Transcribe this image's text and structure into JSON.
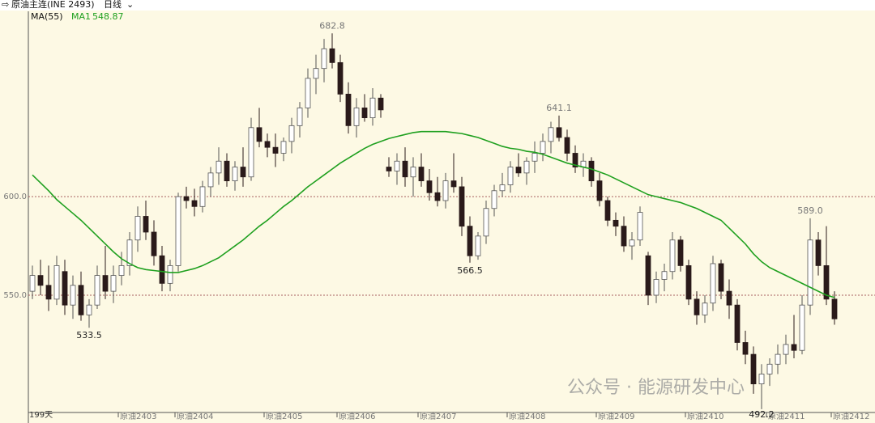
{
  "chart_data": {
    "type": "candlestick",
    "title": "原油主连(INE 2493)",
    "period": "日线",
    "days": "199天",
    "indicator": "MA(55)",
    "watermark": "公众号 · 能源研发中心",
    "up_color": "#ffffff",
    "down_color": "#2a1a1a",
    "grid": true,
    "ylim": [
      490.5,
      694
    ],
    "yticks": [
      {
        "value": 550,
        "label": "550.0"
      },
      {
        "value": 600,
        "label": "600.0"
      }
    ],
    "annotations": [
      "682.8",
      "641.1",
      "589.0",
      "533.5",
      "566.5",
      "492.2"
    ],
    "categories": [
      null,
      null,
      null,
      null,
      null,
      null,
      null,
      null,
      null,
      null,
      null,
      "原油2403",
      null,
      null,
      null,
      null,
      null,
      null,
      "原油2404",
      null,
      null,
      null,
      null,
      null,
      null,
      null,
      null,
      null,
      null,
      "原油2405",
      null,
      null,
      null,
      null,
      null,
      null,
      null,
      null,
      "原油2406",
      null,
      null,
      null,
      null,
      null,
      null,
      null,
      null,
      null,
      "原油2407",
      null,
      null,
      null,
      null,
      null,
      null,
      null,
      null,
      null,
      null,
      "原油2408",
      null,
      null,
      null,
      null,
      null,
      null,
      null,
      null,
      null,
      null,
      "原油2409",
      null,
      null,
      null,
      null,
      null,
      null,
      null,
      null,
      null,
      null,
      "原油2410",
      null,
      null,
      null,
      null,
      null,
      null,
      null,
      null,
      null,
      "原油2411",
      null,
      null,
      null,
      null,
      null,
      null,
      null,
      "原油2412"
    ],
    "ohlc": [
      [
        552,
        565,
        548,
        560
      ],
      [
        560,
        568,
        550,
        555
      ],
      [
        555,
        565,
        542,
        548
      ],
      [
        548,
        570,
        545,
        565
      ],
      [
        562,
        568,
        540,
        545
      ],
      [
        545,
        560,
        538,
        555
      ],
      [
        555,
        562,
        537,
        540
      ],
      [
        540,
        548,
        533.5,
        545
      ],
      [
        545,
        565,
        543,
        560
      ],
      [
        560,
        575,
        548,
        552
      ],
      [
        552,
        565,
        546,
        560
      ],
      [
        560,
        572,
        555,
        565
      ],
      [
        565,
        582,
        560,
        578
      ],
      [
        578,
        595,
        572,
        590
      ],
      [
        590,
        598,
        578,
        582
      ],
      [
        582,
        588,
        565,
        570
      ],
      [
        570,
        575,
        552,
        556
      ],
      [
        556,
        568,
        552,
        565
      ],
      [
        565,
        602,
        562,
        600
      ],
      [
        600,
        605,
        594,
        598
      ],
      [
        598,
        604,
        590,
        595
      ],
      [
        595,
        608,
        592,
        605
      ],
      [
        605,
        615,
        600,
        612
      ],
      [
        612,
        625,
        606,
        618
      ],
      [
        618,
        622,
        605,
        608
      ],
      [
        608,
        618,
        603,
        615
      ],
      [
        615,
        625,
        605,
        610
      ],
      [
        610,
        640,
        608,
        635
      ],
      [
        635,
        645,
        625,
        628
      ],
      [
        628,
        632,
        620,
        625
      ],
      [
        625,
        632,
        615,
        622
      ],
      [
        622,
        630,
        618,
        628
      ],
      [
        628,
        640,
        622,
        636
      ],
      [
        636,
        648,
        630,
        645
      ],
      [
        645,
        665,
        640,
        660
      ],
      [
        660,
        672,
        652,
        665
      ],
      [
        665,
        680,
        658,
        675
      ],
      [
        675,
        682.8,
        665,
        668
      ],
      [
        668,
        672,
        648,
        652
      ],
      [
        652,
        658,
        632,
        636
      ],
      [
        636,
        650,
        630,
        645
      ],
      [
        645,
        652,
        638,
        640
      ],
      [
        640,
        655,
        636,
        650
      ],
      [
        650,
        652,
        640,
        644
      ],
      [
        615,
        620,
        610,
        613
      ],
      [
        613,
        622,
        606,
        618
      ],
      [
        618,
        625,
        605,
        610
      ],
      [
        610,
        620,
        600,
        615
      ],
      [
        615,
        622,
        605,
        608
      ],
      [
        608,
        614,
        598,
        602
      ],
      [
        602,
        610,
        595,
        598
      ],
      [
        598,
        612,
        594,
        608
      ],
      [
        608,
        622,
        602,
        605
      ],
      [
        605,
        610,
        580,
        585
      ],
      [
        585,
        590,
        566.5,
        570
      ],
      [
        570,
        582,
        568,
        580
      ],
      [
        580,
        598,
        576,
        594
      ],
      [
        594,
        606,
        590,
        603
      ],
      [
        603,
        612,
        600,
        606
      ],
      [
        606,
        618,
        602,
        615
      ],
      [
        615,
        622,
        610,
        612
      ],
      [
        612,
        620,
        606,
        618
      ],
      [
        618,
        628,
        612,
        622
      ],
      [
        622,
        632,
        618,
        628
      ],
      [
        628,
        638,
        622,
        635
      ],
      [
        635,
        641.1,
        628,
        630
      ],
      [
        630,
        634,
        618,
        622
      ],
      [
        622,
        626,
        612,
        615
      ],
      [
        615,
        622,
        610,
        618
      ],
      [
        618,
        620,
        605,
        608
      ],
      [
        608,
        612,
        595,
        598
      ],
      [
        598,
        600,
        585,
        588
      ],
      [
        588,
        592,
        580,
        585
      ],
      [
        585,
        590,
        572,
        575
      ],
      [
        575,
        582,
        568,
        578
      ],
      [
        578,
        595,
        575,
        592
      ],
      [
        570,
        572,
        545,
        550
      ],
      [
        550,
        562,
        546,
        558
      ],
      [
        558,
        566,
        552,
        562
      ],
      [
        562,
        582,
        558,
        578
      ],
      [
        578,
        580,
        562,
        565
      ],
      [
        565,
        568,
        545,
        548
      ],
      [
        548,
        552,
        535,
        540
      ],
      [
        540,
        550,
        536,
        546
      ],
      [
        546,
        570,
        542,
        566
      ],
      [
        566,
        568,
        548,
        552
      ],
      [
        552,
        558,
        538,
        545
      ],
      [
        545,
        548,
        522,
        526
      ],
      [
        526,
        532,
        515,
        520
      ],
      [
        520,
        524,
        500,
        505
      ],
      [
        505,
        515,
        492.2,
        510
      ],
      [
        510,
        518,
        504,
        515
      ],
      [
        515,
        525,
        510,
        520
      ],
      [
        520,
        530,
        515,
        525
      ],
      [
        525,
        540,
        518,
        522
      ],
      [
        522,
        550,
        520,
        545
      ],
      [
        545,
        589,
        540,
        578
      ],
      [
        578,
        582,
        560,
        565
      ],
      [
        565,
        585,
        545,
        548
      ],
      [
        548,
        552,
        535,
        538
      ]
    ],
    "ma": {
      "name": "MA1",
      "color": "#1fa01f",
      "values": [
        611,
        607,
        603,
        598.5,
        595,
        591.5,
        588,
        584,
        580,
        576,
        572,
        568.5,
        566,
        564,
        563,
        562.5,
        562,
        561.5,
        561.5,
        562.5,
        563.5,
        565,
        567,
        569,
        572,
        575,
        578,
        581.5,
        585,
        588,
        591.5,
        595,
        598,
        601.5,
        605,
        608,
        611,
        614,
        617,
        619.5,
        622,
        624.5,
        626.5,
        628,
        629.5,
        630.5,
        631.5,
        632.5,
        633,
        633,
        633,
        633,
        632.5,
        632,
        631,
        630,
        628.5,
        627,
        625.5,
        624.5,
        624,
        623,
        622.5,
        621.5,
        620,
        618.5,
        617,
        616,
        615,
        614,
        612.5,
        611,
        609,
        607,
        605,
        603,
        601,
        600,
        599,
        598,
        597,
        595.5,
        594,
        592,
        590,
        588,
        584,
        580,
        576,
        571,
        567,
        564,
        562,
        560,
        558,
        556,
        554,
        552,
        550,
        548.87
      ]
    }
  }
}
